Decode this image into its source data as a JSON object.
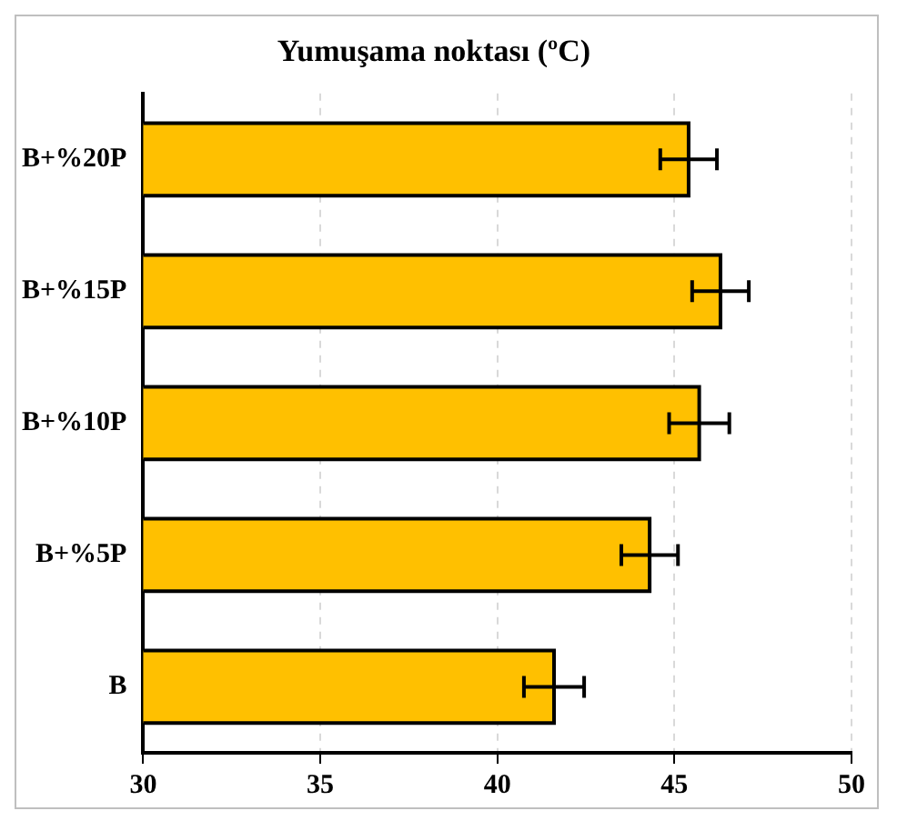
{
  "chart_data": {
    "type": "bar",
    "orientation": "horizontal",
    "title": "Yumuşama noktası (ºC)",
    "categories": [
      "B+%20P",
      "B+%15P",
      "B+%10P",
      "B+%5P",
      "B"
    ],
    "values": [
      45.4,
      46.3,
      45.7,
      44.3,
      41.6
    ],
    "errors": [
      0.8,
      0.8,
      0.85,
      0.8,
      0.85
    ],
    "color": "#ffc000",
    "xlim": [
      30,
      50
    ],
    "xticks": [
      30,
      35,
      40,
      45,
      50
    ],
    "grid": "x",
    "legend": false
  }
}
